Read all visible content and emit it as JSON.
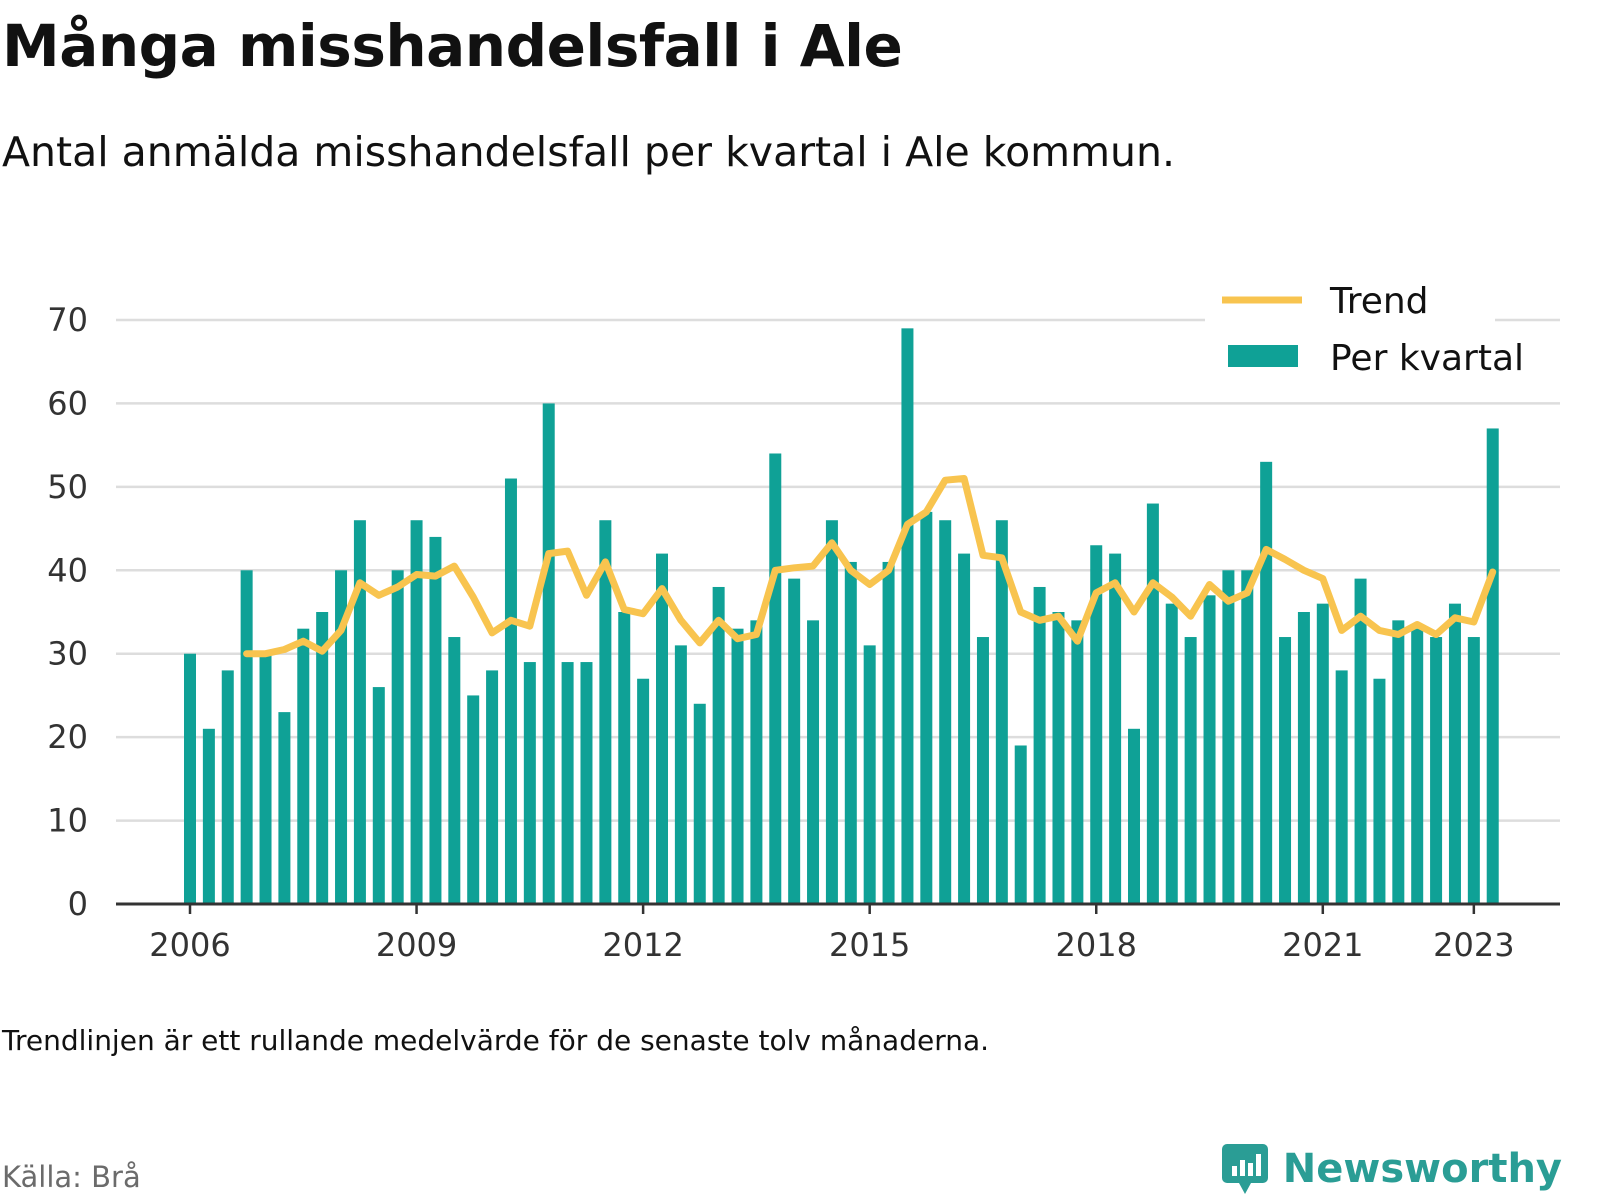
{
  "header": {
    "title": "Många misshandelsfall i Ale",
    "subtitle": "Antal anmälda misshandelsfall per kvartal i Ale kommun."
  },
  "footer": {
    "note": "Trendlinjen är ett rullande medelvärde för de senaste tolv månaderna.",
    "source": "Källa: Brå",
    "brand": "Newsworthy"
  },
  "icons": {
    "brand_logo": "newsworthy-logo-icon"
  },
  "colors": {
    "bars": "#0fa196",
    "trend": "#f8c44f",
    "grid": "#dddddd",
    "axis": "#333333",
    "brand": "#2a9d95"
  },
  "chart_data": {
    "type": "bar",
    "title": "Många misshandelsfall i Ale",
    "xlabel": "",
    "ylabel": "",
    "ylim": [
      0,
      70
    ],
    "y_ticks": [
      0,
      10,
      20,
      30,
      40,
      50,
      60,
      70
    ],
    "x_ticks": [
      "2006",
      "2009",
      "2012",
      "2015",
      "2018",
      "2021",
      "2023"
    ],
    "grid": true,
    "legend_position": "top-right",
    "categories": [
      "2006 Q1",
      "2006 Q2",
      "2006 Q3",
      "2006 Q4",
      "2007 Q1",
      "2007 Q2",
      "2007 Q3",
      "2007 Q4",
      "2008 Q1",
      "2008 Q2",
      "2008 Q3",
      "2008 Q4",
      "2009 Q1",
      "2009 Q2",
      "2009 Q3",
      "2009 Q4",
      "2010 Q1",
      "2010 Q2",
      "2010 Q3",
      "2010 Q4",
      "2011 Q1",
      "2011 Q2",
      "2011 Q3",
      "2011 Q4",
      "2012 Q1",
      "2012 Q2",
      "2012 Q3",
      "2012 Q4",
      "2013 Q1",
      "2013 Q2",
      "2013 Q3",
      "2013 Q4",
      "2014 Q1",
      "2014 Q2",
      "2014 Q3",
      "2014 Q4",
      "2015 Q1",
      "2015 Q2",
      "2015 Q3",
      "2015 Q4",
      "2016 Q1",
      "2016 Q2",
      "2016 Q3",
      "2016 Q4",
      "2017 Q1",
      "2017 Q2",
      "2017 Q3",
      "2017 Q4",
      "2018 Q1",
      "2018 Q2",
      "2018 Q3",
      "2018 Q4",
      "2019 Q1",
      "2019 Q2",
      "2019 Q3",
      "2019 Q4",
      "2020 Q1",
      "2020 Q2",
      "2020 Q3",
      "2020 Q4",
      "2021 Q1",
      "2021 Q2",
      "2021 Q3",
      "2021 Q4",
      "2022 Q1",
      "2022 Q2",
      "2022 Q3",
      "2022 Q4",
      "2023 Q1",
      "2023 Q2"
    ],
    "series": [
      {
        "name": "Per kvartal",
        "type": "bar",
        "color": "#0fa196",
        "values": [
          30,
          21,
          28,
          40,
          30,
          23,
          33,
          35,
          40,
          46,
          26,
          40,
          46,
          44,
          32,
          25,
          28,
          51,
          29,
          60,
          29,
          29,
          46,
          35,
          27,
          42,
          31,
          24,
          38,
          33,
          34,
          54,
          39,
          34,
          46,
          41,
          31,
          41,
          69,
          47,
          46,
          42,
          32,
          46,
          19,
          38,
          35,
          34,
          43,
          42,
          21,
          48,
          36,
          32,
          37,
          40,
          40,
          53,
          32,
          35,
          36,
          28,
          39,
          27,
          34,
          33,
          32,
          36,
          32,
          57
        ]
      },
      {
        "name": "Trend",
        "type": "line",
        "color": "#f8c44f",
        "values": [
          null,
          null,
          null,
          30,
          30,
          30.5,
          31.5,
          30.3,
          32.8,
          38.5,
          37,
          38,
          39.5,
          39.3,
          40.5,
          36.8,
          32.5,
          34,
          33.3,
          42,
          42.3,
          37,
          41,
          35.3,
          34.8,
          37.8,
          34,
          31.3,
          34,
          31.8,
          32.3,
          40,
          40.3,
          40.5,
          43.3,
          40,
          38.3,
          40,
          45.5,
          47,
          50.8,
          51,
          41.8,
          41.5,
          35,
          34,
          34.5,
          31.5,
          37.3,
          38.5,
          35,
          38.5,
          36.8,
          34.5,
          38.3,
          36.3,
          37.3,
          42.5,
          41.3,
          40,
          39,
          32.8,
          34.5,
          32.8,
          32.3,
          33.5,
          32.3,
          34.3,
          33.8,
          39.8
        ]
      }
    ]
  }
}
